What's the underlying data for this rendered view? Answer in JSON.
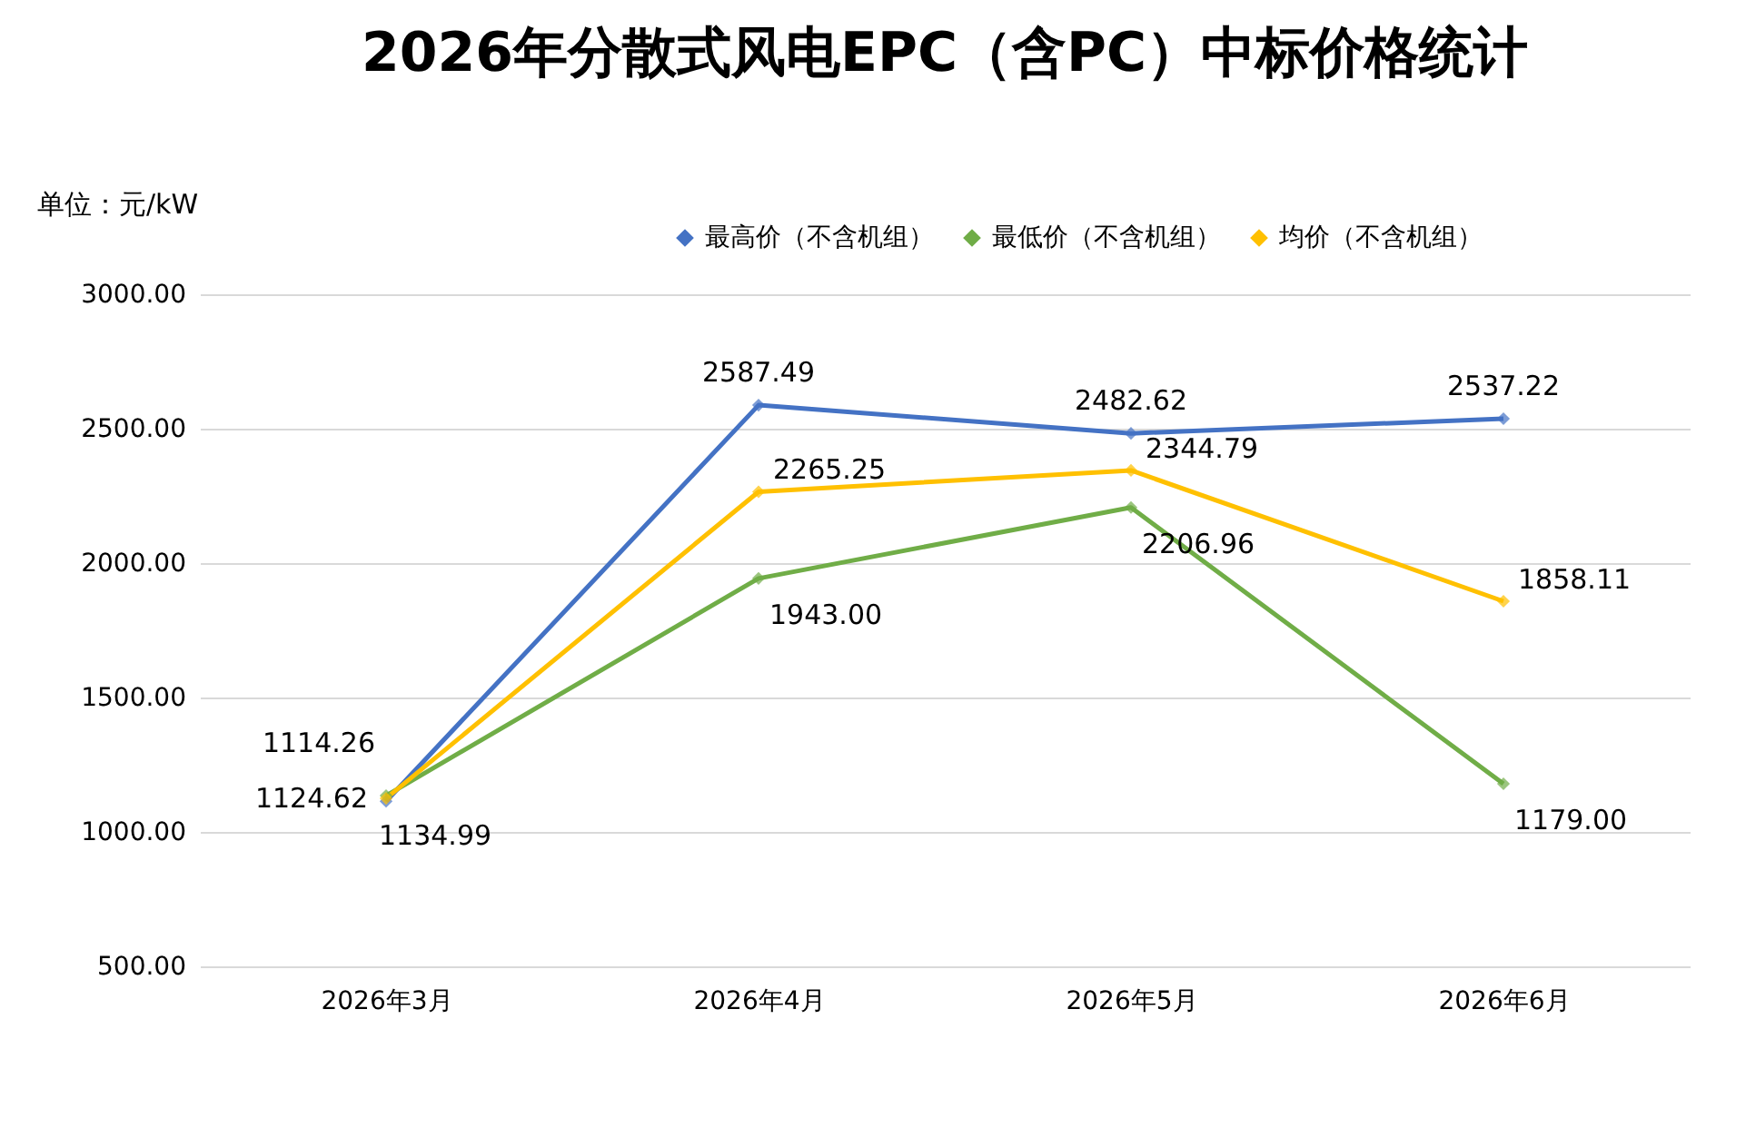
{
  "chart_data": {
    "type": "line",
    "title": "2026年分散式风电EPC（含PC）中标价格统计",
    "ylabel": "单位：元/kW",
    "categories": [
      "2026年3月",
      "2026年4月",
      "2026年5月",
      "2026年6月"
    ],
    "series": [
      {
        "name": "最高价（不含机组）",
        "color": "#4472c4",
        "values": [
          1114.26,
          2587.49,
          2482.62,
          2537.22
        ],
        "value_labels": [
          "1114.26",
          "2587.49",
          "2482.62",
          "2537.22"
        ]
      },
      {
        "name": "最低价（不含机组）",
        "color": "#70ad47",
        "values": [
          1134.99,
          1943.0,
          2206.96,
          1179.0
        ],
        "value_labels": [
          "1134.99",
          "1943.00",
          "2206.96",
          "1179.00"
        ]
      },
      {
        "name": "均价（不含机组）",
        "color": "#ffc000",
        "values": [
          1124.62,
          2265.25,
          2344.79,
          1858.11
        ],
        "value_labels": [
          "1124.62",
          "2265.25",
          "2344.79",
          "1858.11"
        ]
      }
    ],
    "ylim": [
      500,
      3000
    ],
    "yticks": [
      {
        "value": 500,
        "label": "500.00"
      },
      {
        "value": 1000,
        "label": "1000.00"
      },
      {
        "value": 1500,
        "label": "1500.00"
      },
      {
        "value": 2000,
        "label": "2000.00"
      },
      {
        "value": 2500,
        "label": "2500.00"
      },
      {
        "value": 3000,
        "label": "3000.00"
      }
    ],
    "grid": "y",
    "legend": "top right",
    "marker": "diamond",
    "line_style": "solid"
  }
}
